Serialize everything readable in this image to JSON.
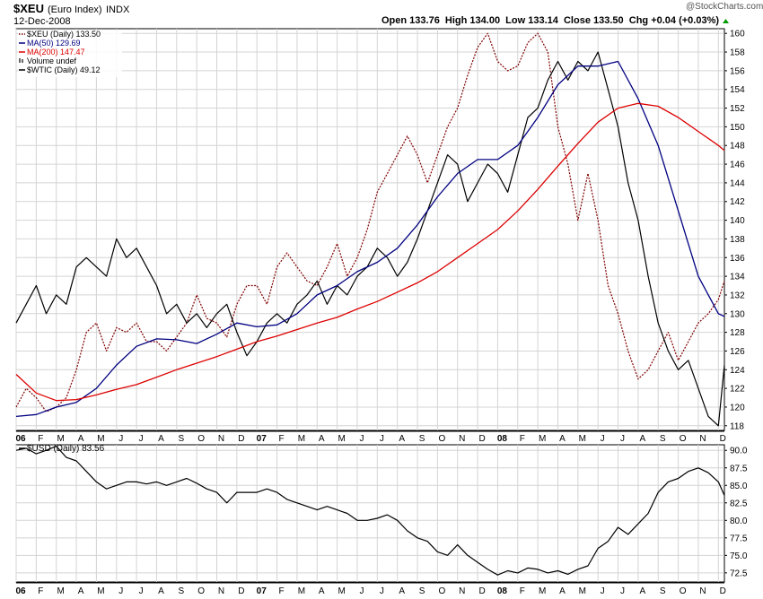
{
  "header": {
    "symbol": "$XEU",
    "name": "(Euro Index)",
    "exchange": "INDX",
    "date": "12-Dec-2008",
    "quote": "Open 133.76  High 134.00  Low 133.14  Close 133.50  Chg +0.04 (+0.03%)",
    "watermark": "@StockCharts.com"
  },
  "colors": {
    "price": "#000000",
    "xeu": "#800000",
    "ma50": "#000080",
    "ma200": "#dd0000",
    "usd": "#000000"
  },
  "chart_data": [
    {
      "type": "line",
      "title": "$XEU (Euro Index) INDX",
      "ylim": [
        117.5,
        160.5
      ],
      "yticks": [
        118,
        120,
        122,
        124,
        126,
        128,
        130,
        132,
        134,
        136,
        138,
        140,
        142,
        144,
        146,
        148,
        150,
        152,
        154,
        156,
        158,
        160
      ],
      "xticks": [
        "06",
        "F",
        "M",
        "A",
        "M",
        "J",
        "J",
        "A",
        "S",
        "O",
        "N",
        "D",
        "07",
        "F",
        "M",
        "A",
        "M",
        "J",
        "J",
        "A",
        "S",
        "O",
        "N",
        "D",
        "08",
        "F",
        "M",
        "A",
        "M",
        "J",
        "J",
        "A",
        "S",
        "O",
        "N",
        "D"
      ],
      "legend": [
        "$XEU (Daily) 133.50",
        "MA(50) 129.69",
        "MA(200) 147.47",
        "Volume undef",
        "$WTIC (Daily) 49.12"
      ],
      "series": [
        {
          "name": "$XEU (Daily)",
          "style": "dotted",
          "x": [
            0,
            0.5,
            1,
            1.5,
            2,
            2.5,
            3,
            3.5,
            4,
            4.5,
            5,
            5.5,
            6,
            6.5,
            7,
            7.5,
            8,
            8.5,
            9,
            9.5,
            10,
            10.5,
            11,
            11.5,
            12,
            12.5,
            13,
            13.5,
            14,
            14.5,
            15,
            15.5,
            16,
            16.5,
            17,
            17.5,
            18,
            18.5,
            19,
            19.5,
            20,
            20.5,
            21,
            21.5,
            22,
            22.5,
            23,
            23.5,
            24,
            24.5,
            25,
            25.5,
            26,
            26.5,
            27,
            27.5,
            28,
            28.5,
            29,
            29.5,
            30,
            30.5,
            31,
            31.5,
            32,
            32.5,
            33,
            33.5,
            34,
            34.5,
            35,
            35.3
          ],
          "values": [
            120,
            122,
            121,
            119.5,
            120,
            121,
            124,
            128,
            129,
            126,
            128.5,
            128,
            129,
            127,
            127,
            126,
            127.5,
            129,
            132,
            129.5,
            129,
            127.5,
            131,
            133,
            133,
            131,
            135,
            136.5,
            135,
            133.5,
            133,
            135,
            137.5,
            134,
            136,
            139,
            143,
            145,
            147,
            149,
            147,
            144,
            147,
            150,
            152,
            155.5,
            158.5,
            160,
            157,
            156,
            156.5,
            159,
            160,
            158,
            150,
            146,
            140,
            145,
            140,
            133,
            130,
            126,
            123,
            124,
            126,
            128,
            125,
            127,
            129,
            130,
            131.5,
            133.5
          ]
        },
        {
          "name": "$WTIC (Daily)",
          "style": "solid",
          "x": [
            0,
            0.5,
            1,
            1.5,
            2,
            2.5,
            3,
            3.5,
            4,
            4.5,
            5,
            5.5,
            6,
            6.5,
            7,
            7.5,
            8,
            8.5,
            9,
            9.5,
            10,
            10.5,
            11,
            11.5,
            12,
            12.5,
            13,
            13.5,
            14,
            14.5,
            15,
            15.5,
            16,
            16.5,
            17,
            17.5,
            18,
            18.5,
            19,
            19.5,
            20,
            20.5,
            21,
            21.5,
            22,
            22.5,
            23,
            23.5,
            24,
            24.5,
            25,
            25.5,
            26,
            26.5,
            27,
            27.5,
            28,
            28.5,
            29,
            29.5,
            30,
            30.5,
            31,
            31.5,
            32,
            32.5,
            33,
            33.5,
            34,
            34.5,
            35,
            35.3
          ],
          "values": [
            129,
            131,
            133,
            130,
            132,
            131,
            135,
            136,
            135,
            134,
            138,
            136,
            137,
            135,
            133,
            130,
            131,
            129,
            130,
            128.5,
            130,
            131,
            128,
            125.5,
            127,
            129,
            130,
            129,
            131,
            132,
            133.5,
            131,
            133,
            132,
            134,
            135,
            137,
            136,
            134,
            135.5,
            138,
            141,
            144,
            147,
            146,
            142,
            144,
            146,
            145,
            143,
            147,
            151,
            152,
            155,
            157,
            155,
            157,
            156,
            158,
            154,
            150,
            144,
            140,
            134,
            129,
            126,
            124,
            125,
            122,
            119,
            118,
            124.5
          ]
        },
        {
          "name": "MA(50)",
          "style": "solid",
          "x": [
            0,
            1,
            2,
            3,
            4,
            5,
            6,
            7,
            8,
            9,
            10,
            11,
            12,
            13,
            14,
            15,
            16,
            17,
            18,
            19,
            20,
            21,
            22,
            23,
            24,
            25,
            26,
            27,
            28,
            29,
            30,
            31,
            32,
            33,
            34,
            35,
            35.3
          ],
          "values": [
            119,
            119.2,
            120,
            120.5,
            122,
            124.5,
            126.5,
            127.3,
            127.2,
            126.8,
            127.8,
            129,
            128.6,
            128.8,
            130,
            132,
            133,
            134.5,
            135.5,
            137,
            139.5,
            142.5,
            145,
            146.5,
            146.5,
            148,
            151,
            154.5,
            156.5,
            156.5,
            157,
            153,
            148,
            141,
            134,
            130,
            129.7
          ]
        },
        {
          "name": "MA(200)",
          "style": "solid",
          "x": [
            0,
            1,
            2,
            3,
            4,
            5,
            6,
            7,
            8,
            9,
            10,
            11,
            12,
            13,
            14,
            15,
            16,
            17,
            18,
            19,
            20,
            21,
            22,
            23,
            24,
            25,
            26,
            27,
            28,
            29,
            30,
            31,
            32,
            33,
            34,
            35,
            35.3
          ],
          "values": [
            123.5,
            121.5,
            120.7,
            120.8,
            121.3,
            121.9,
            122.4,
            123.2,
            124,
            124.7,
            125.4,
            126.2,
            127,
            127.6,
            128.3,
            129,
            129.6,
            130.5,
            131.3,
            132.3,
            133.3,
            134.5,
            136,
            137.5,
            139,
            141,
            143.3,
            145.8,
            148.2,
            150.5,
            152,
            152.5,
            152.2,
            151,
            149.5,
            148,
            147.47
          ]
        }
      ]
    },
    {
      "type": "line",
      "title": "$USD (Daily) 83.56",
      "ylim": [
        71.2,
        90.8
      ],
      "yticks": [
        72.5,
        75.0,
        77.5,
        80.0,
        82.5,
        85.0,
        87.5,
        90.0
      ],
      "xticks": [
        "06",
        "F",
        "M",
        "A",
        "M",
        "J",
        "J",
        "A",
        "S",
        "O",
        "N",
        "D",
        "07",
        "F",
        "M",
        "A",
        "M",
        "J",
        "J",
        "A",
        "S",
        "O",
        "N",
        "D",
        "08",
        "F",
        "M",
        "A",
        "M",
        "J",
        "J",
        "A",
        "S",
        "O",
        "N",
        "D"
      ],
      "series": [
        {
          "name": "$USD (Daily)",
          "x": [
            0,
            0.5,
            1,
            1.5,
            2,
            2.5,
            3,
            3.5,
            4,
            4.5,
            5,
            5.5,
            6,
            6.5,
            7,
            7.5,
            8,
            8.5,
            9,
            9.5,
            10,
            10.5,
            11,
            11.5,
            12,
            12.5,
            13,
            13.5,
            14,
            14.5,
            15,
            15.5,
            16,
            16.5,
            17,
            17.5,
            18,
            18.5,
            19,
            19.5,
            20,
            20.5,
            21,
            21.5,
            22,
            22.5,
            23,
            23.5,
            24,
            24.5,
            25,
            25.5,
            26,
            26.5,
            27,
            27.5,
            28,
            28.5,
            29,
            29.5,
            30,
            30.5,
            31,
            31.5,
            32,
            32.5,
            33,
            33.5,
            34,
            34.5,
            35,
            35.3
          ],
          "values": [
            90,
            90.3,
            89.5,
            90,
            90.6,
            89,
            88.5,
            87,
            85.5,
            84.5,
            85,
            85.5,
            85.5,
            85.2,
            85.5,
            85,
            85.5,
            86,
            85.3,
            84.5,
            84,
            82.5,
            84,
            84,
            84,
            84.5,
            84,
            83,
            82.5,
            82,
            81.5,
            82,
            81.5,
            81,
            80,
            80,
            80.3,
            80.8,
            80,
            78.5,
            77.5,
            77,
            75.5,
            75,
            76.5,
            75,
            74,
            73,
            72.2,
            72.8,
            72.5,
            73.2,
            73,
            72.5,
            72.8,
            72.3,
            73,
            73.5,
            76,
            77,
            79,
            78,
            79.5,
            81,
            84,
            85.5,
            86,
            87,
            87.5,
            86.8,
            85.5,
            83.56
          ]
        }
      ]
    }
  ]
}
